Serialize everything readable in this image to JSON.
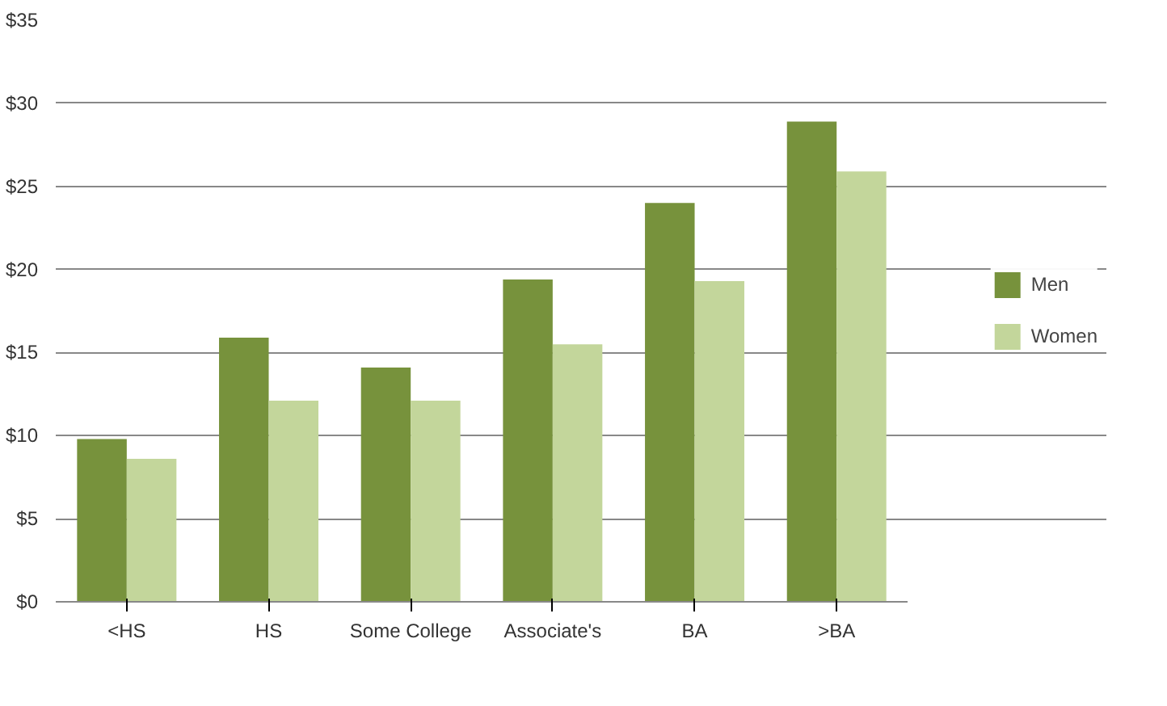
{
  "chart_data": {
    "type": "bar",
    "categories": [
      "<HS",
      "HS",
      "Some College",
      "Associate's",
      "BA",
      ">BA"
    ],
    "series": [
      {
        "name": "Men",
        "color": "#77923c",
        "values": [
          9.8,
          15.9,
          14.1,
          19.4,
          24.0,
          28.9
        ]
      },
      {
        "name": "Women",
        "color": "#c3d69b",
        "values": [
          8.6,
          12.1,
          12.1,
          15.5,
          19.3,
          25.9
        ]
      }
    ],
    "ylim": [
      0,
      35
    ],
    "yticks": [
      {
        "value": 0,
        "label": "$0"
      },
      {
        "value": 5,
        "label": "$5"
      },
      {
        "value": 10,
        "label": "$10"
      },
      {
        "value": 15,
        "label": "$15"
      },
      {
        "value": 20,
        "label": "$20"
      },
      {
        "value": 25,
        "label": "$25"
      },
      {
        "value": 30,
        "label": "$30"
      },
      {
        "value": 35,
        "label": "$35"
      }
    ],
    "grid": "y",
    "legend": "right"
  }
}
